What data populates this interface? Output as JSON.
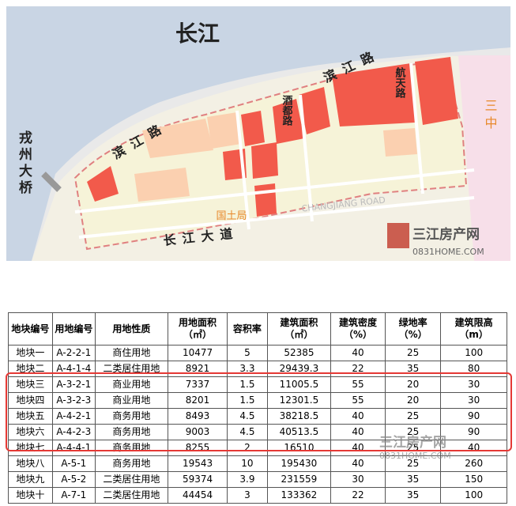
{
  "map": {
    "river": "长江",
    "bridge": "戎州大桥",
    "road_binjiang_west": "滨江路",
    "road_binjiang_east": "滨江路",
    "road_jiudu": "酒都路",
    "road_hangtian": "航天路",
    "school": "三中",
    "bureau": "国土局",
    "avenue": "长江大道",
    "avenue_en": "CHANGJIANG ROAD",
    "watermark_name": "三江房产网",
    "watermark_site": "0831HOME.COM"
  },
  "table": {
    "header": [
      "地块编号",
      "用地编号",
      "用地性质",
      "用地面积（㎡）",
      "容积率",
      "建筑面积（㎡）",
      "建筑密度（%）",
      "绿地率（%）",
      "建筑限高（m）"
    ],
    "rows": [
      [
        "地块一",
        "A-2-2-1",
        "商住用地",
        "10477",
        "5",
        "52385",
        "40",
        "25",
        "100"
      ],
      [
        "地块二",
        "A-4-1-4",
        "二类居住用地",
        "8921",
        "3.3",
        "29439.3",
        "22",
        "35",
        "80"
      ],
      [
        "地块三",
        "A-3-2-1",
        "商业用地",
        "7337",
        "1.5",
        "11005.5",
        "55",
        "20",
        "30"
      ],
      [
        "地块四",
        "A-3-2-3",
        "商业用地",
        "8201",
        "1.5",
        "12301.5",
        "55",
        "20",
        "30"
      ],
      [
        "地块五",
        "A-4-2-1",
        "商务用地",
        "8493",
        "4.5",
        "38218.5",
        "40",
        "25",
        "90"
      ],
      [
        "地块六",
        "A-4-2-3",
        "商务用地",
        "9003",
        "4.5",
        "40513.5",
        "40",
        "25",
        "90"
      ],
      [
        "地块七",
        "A-4-4-1",
        "商务用地",
        "8255",
        "2",
        "16510",
        "40",
        "25",
        "40"
      ],
      [
        "地块八",
        "A-5-1",
        "商务用地",
        "19543",
        "10",
        "195430",
        "40",
        "25",
        "260"
      ],
      [
        "地块九",
        "A-5-2",
        "二类居住用地",
        "59374",
        "3.9",
        "231559",
        "30",
        "35",
        "150"
      ],
      [
        "地块十",
        "A-7-1",
        "二类居住用地",
        "44454",
        "3",
        "133362",
        "22",
        "35",
        "100"
      ]
    ]
  },
  "watermark2": {
    "name": "三江房产网",
    "site": "0831HOME.COM"
  }
}
